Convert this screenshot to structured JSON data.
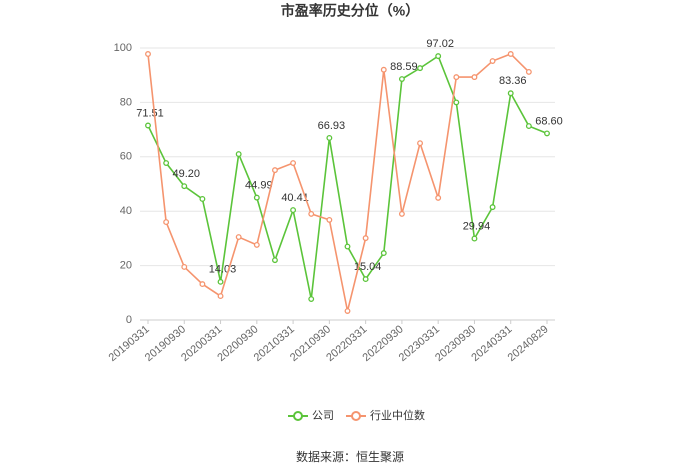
{
  "chart_data": {
    "type": "line",
    "title": "市盈率历史分位（%）",
    "categories": [
      "20190331",
      null,
      "20190930",
      null,
      "20200331",
      null,
      "20200930",
      null,
      "20210331",
      null,
      "20210930",
      null,
      "20220331",
      null,
      "20220930",
      null,
      "20230331",
      null,
      "20230930",
      null,
      "20240331",
      null,
      "20240829"
    ],
    "series": [
      {
        "name": "公司",
        "color": "#5bc43a",
        "values": [
          71.51,
          57.7,
          49.2,
          44.5,
          14.03,
          61,
          44.99,
          22,
          40.41,
          7.7,
          66.93,
          27,
          15.04,
          24.6,
          88.59,
          92.6,
          97.02,
          80,
          29.94,
          41.5,
          83.36,
          71.3,
          68.6
        ],
        "value_labels": [
          "71.51",
          null,
          "49.20",
          null,
          "14.03",
          null,
          "44.99",
          null,
          "40.41",
          null,
          "66.93",
          null,
          "15.04",
          null,
          "88.59",
          null,
          "97.02",
          null,
          "29.94",
          null,
          "83.36",
          null,
          "68.60"
        ]
      },
      {
        "name": "行业中位数",
        "color": "#f5946e",
        "values": [
          97.8,
          36,
          19.5,
          13.2,
          8.8,
          30.5,
          27.6,
          55.1,
          57.7,
          39,
          36.8,
          3.3,
          30.1,
          92,
          39,
          65,
          44.9,
          89.3,
          89.3,
          95.2,
          97.8,
          91.2,
          null
        ]
      }
    ],
    "ylim": [
      0,
      100
    ],
    "yticks": [
      0,
      20,
      40,
      60,
      80,
      100
    ],
    "grid": true,
    "legend": "bottom",
    "source": "数据来源：恒生聚源"
  }
}
